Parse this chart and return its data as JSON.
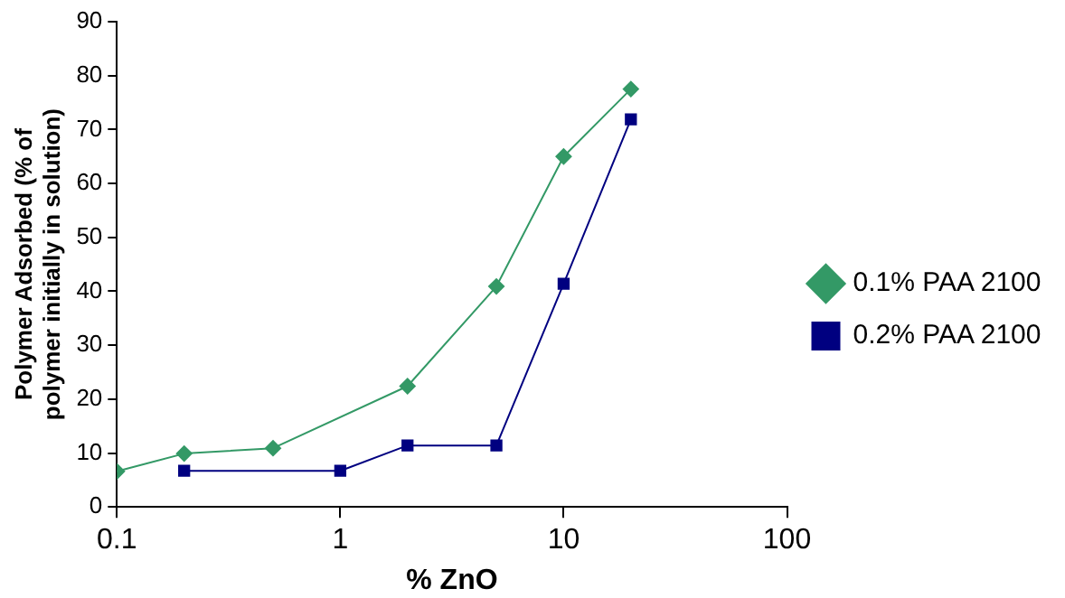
{
  "chart_data": {
    "type": "line",
    "xlabel": "% ZnO",
    "ylabel": "Polymer Adsorbed (% of polymer initially in solution)",
    "log": "x",
    "xlim": [
      0.1,
      100
    ],
    "xticks": [
      0.1,
      1,
      10,
      100
    ],
    "ylim": [
      0,
      90
    ],
    "yticks": [
      0,
      10,
      20,
      30,
      40,
      50,
      60,
      70,
      80,
      90
    ],
    "grid": false,
    "legend": "right",
    "series": [
      {
        "name": "0.1% PAA 2100",
        "color": "#339966",
        "marker": "diamond",
        "x": [
          0.1,
          0.2,
          0.5,
          2,
          5,
          10,
          20
        ],
        "values": [
          6.6,
          9.9,
          10.9,
          22.4,
          40.9,
          65,
          77.5
        ]
      },
      {
        "name": "0.2% PAA 2100",
        "color": "#000080",
        "marker": "square",
        "x": [
          0.2,
          1,
          2,
          5,
          10,
          20
        ],
        "values": [
          6.7,
          6.7,
          11.4,
          11.4,
          41.4,
          71.9
        ]
      }
    ]
  }
}
